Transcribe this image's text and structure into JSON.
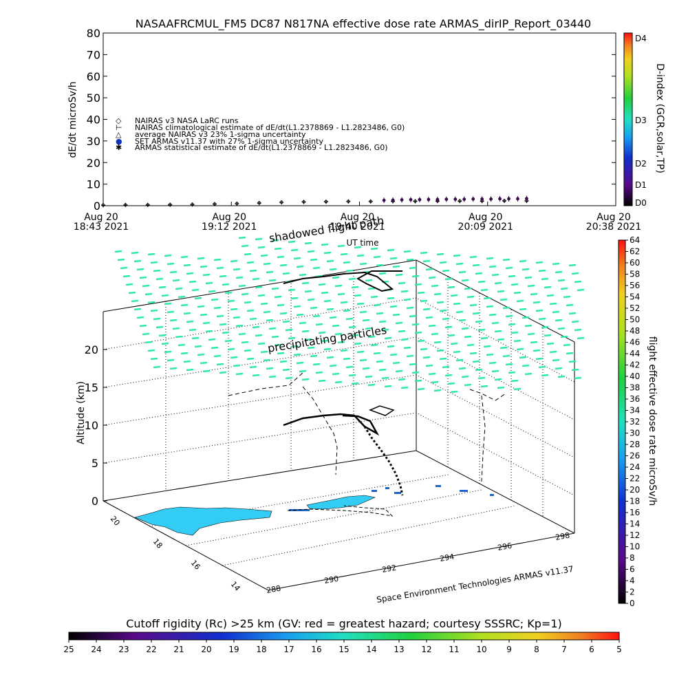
{
  "title": "NASAAFRCMUL_FM5 DC87 N817NA effective dose rate ARMAS_dirIP_Report_03440",
  "colors": {
    "precip": "#2ee8b0",
    "land": "#33ccf5",
    "track": "#000000",
    "dose_dark": "#3a0a4a"
  },
  "chart_data": [
    {
      "type": "scatter",
      "name": "time-series",
      "ylabel": "dE/dt microSv/h",
      "ylim": [
        0,
        80
      ],
      "yticks": [
        "0",
        "10",
        "20",
        "30",
        "40",
        "50",
        "60",
        "70",
        "80"
      ],
      "xlabel": "UT time",
      "xticks": [
        {
          "date": "Aug 20",
          "time": "18:43 2021"
        },
        {
          "date": "Aug 20",
          "time": "19:12 2021"
        },
        {
          "date": "Aug 20",
          "time": "19:40 2021"
        },
        {
          "date": "Aug 20",
          "time": "20:09 2021"
        },
        {
          "date": "Aug 20",
          "time": "20:38 2021"
        }
      ],
      "xrange_minutes": [
        0,
        115
      ],
      "right_axis": {
        "label": "D-index (GCR,solar,TP)",
        "ticks": [
          "D0",
          "D1",
          "D2",
          "D3",
          "D4"
        ]
      },
      "legend": [
        {
          "symbol": "◇",
          "label": "NAIRAS v3 NASA LaRC runs"
        },
        {
          "symbol": "⊢",
          "label": "NAIRAS climatological estimate of dE/dt(L1.2378869 - L1.2823486, G0)"
        },
        {
          "symbol": "△",
          "label": "average NAIRAS v3 23% 1-sigma uncertainty"
        },
        {
          "symbol": "●",
          "label": "SET ARMAS v11.37 with 27% 1-sigma uncertainty"
        },
        {
          "symbol": "✱",
          "label": "ARMAS statistical estimate of dE/dt(L1.2378869 - L1.2823486, G0)"
        }
      ],
      "series": [
        {
          "marker": "diamond",
          "x": [
            0,
            5,
            10,
            15,
            20,
            25,
            30,
            35,
            40,
            45,
            50,
            55,
            60,
            65,
            70,
            75,
            80,
            85,
            90,
            95
          ],
          "y": [
            0.3,
            0.4,
            0.4,
            0.5,
            0.6,
            0.8,
            1.0,
            1.3,
            1.6,
            1.8,
            1.9,
            2.0,
            2.0,
            2.1,
            2.1,
            2.2,
            2.2,
            2.2,
            2.3,
            2.3
          ]
        },
        {
          "marker": "plus",
          "x": [
            0,
            5,
            10,
            15,
            20,
            25,
            30,
            35,
            40,
            45,
            50,
            55,
            60,
            65,
            70,
            75,
            80,
            85,
            90,
            95
          ],
          "y": [
            0.2,
            0.3,
            0.3,
            0.4,
            0.5,
            0.7,
            0.9,
            1.2,
            1.5,
            1.7,
            1.8,
            1.9,
            1.9,
            2.0,
            2.0,
            2.1,
            2.1,
            2.1,
            2.2,
            2.2
          ]
        },
        {
          "marker": "dot",
          "x": [
            63,
            65,
            67,
            69,
            71,
            73,
            75,
            77,
            79,
            81,
            83,
            85,
            87,
            89,
            91,
            93,
            95
          ],
          "y": [
            2.5,
            2.6,
            2.7,
            2.8,
            2.8,
            2.9,
            2.9,
            3.0,
            3.0,
            3.0,
            3.1,
            3.1,
            3.1,
            3.2,
            3.2,
            3.2,
            3.3
          ]
        }
      ]
    },
    {
      "type": "scatter",
      "name": "3d-flight-path",
      "ylabel": "Altitude (km)",
      "zticks": [
        "0",
        "5",
        "10",
        "15",
        "20"
      ],
      "lat_ticks": [
        "20",
        "18",
        "16",
        "14"
      ],
      "lon_ticks": [
        "288",
        "290",
        "292",
        "294",
        "296",
        "298"
      ],
      "annotations": [
        "shadowed flight path",
        "precipitating particles"
      ],
      "right_colorbar": {
        "label": "flight effective dose rate microSv/h",
        "range": [
          0,
          64
        ],
        "ticks": [
          "0",
          "2",
          "4",
          "6",
          "8",
          "10",
          "12",
          "14",
          "16",
          "18",
          "20",
          "22",
          "24",
          "26",
          "28",
          "30",
          "32",
          "34",
          "36",
          "38",
          "40",
          "42",
          "44",
          "46",
          "48",
          "50",
          "52",
          "54",
          "56",
          "58",
          "60",
          "62",
          "64"
        ]
      },
      "credit": "Space Environment Technologies ARMAS v11.37"
    },
    {
      "type": "heatmap",
      "name": "cutoff-rigidity-colorbar",
      "title": "Cutoff rigidity (Rc) >25 km (GV: red = greatest hazard; courtesy SSSRC; Kp=1)",
      "ticks": [
        "25",
        "24",
        "23",
        "22",
        "21",
        "20",
        "19",
        "18",
        "17",
        "16",
        "15",
        "14",
        "13",
        "12",
        "11",
        "10",
        "9",
        "8",
        "7",
        "6",
        "5"
      ]
    }
  ]
}
